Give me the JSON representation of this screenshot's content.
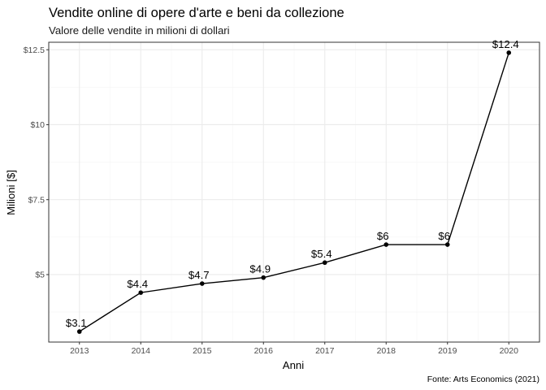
{
  "chart_data": {
    "type": "line",
    "title": "Vendite online di opere d'arte e beni da collezione",
    "subtitle": "Valore delle vendite in milioni di dollari",
    "xlabel": "Anni",
    "ylabel": "Milioni [$]",
    "caption": "Fonte: Arts Economics (2021)",
    "x": [
      2013,
      2014,
      2015,
      2016,
      2017,
      2018,
      2019,
      2020
    ],
    "values": [
      3.1,
      4.4,
      4.7,
      4.9,
      5.4,
      6,
      6,
      12.4
    ],
    "data_labels": [
      "$3.1",
      "$4.4",
      "$4.7",
      "$4.9",
      "$5.4",
      "$6",
      "$6",
      "$12.4"
    ],
    "x_ticks": [
      2013,
      2014,
      2015,
      2016,
      2017,
      2018,
      2019,
      2020
    ],
    "x_tick_labels": [
      "2013",
      "2014",
      "2015",
      "2016",
      "2017",
      "2018",
      "2019",
      "2020"
    ],
    "y_ticks": [
      5,
      7.5,
      10,
      12.5
    ],
    "y_tick_labels": [
      "$5",
      "$7.5",
      "$10",
      "$12.5"
    ],
    "xlim": [
      2012.5,
      2020.5
    ],
    "ylim": [
      2.75,
      12.75
    ],
    "grid": true,
    "legend": "none",
    "colors": {
      "line": "#000000",
      "point": "#000000",
      "panel_border": "#333333",
      "grid_major": "#ebebeb",
      "grid_minor": "#f5f5f5",
      "tick_text": "#4d4d4d"
    }
  }
}
